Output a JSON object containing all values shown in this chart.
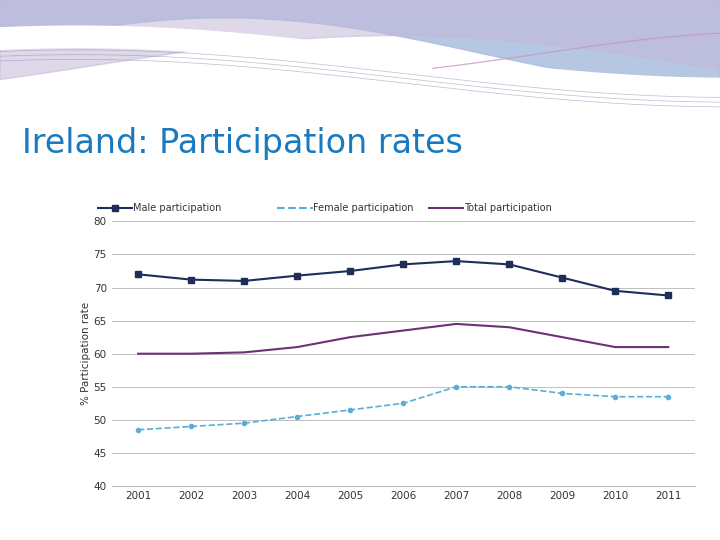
{
  "title": "Ireland: Participation rates",
  "title_color": "#1a7abf",
  "ylabel": "% Participation rate",
  "years": [
    2001,
    2002,
    2003,
    2004,
    2005,
    2006,
    2007,
    2008,
    2009,
    2010,
    2011
  ],
  "male": [
    72.0,
    71.2,
    71.0,
    71.8,
    72.5,
    73.5,
    74.0,
    73.5,
    71.5,
    69.5,
    68.8
  ],
  "female": [
    48.5,
    49.0,
    49.5,
    50.5,
    51.5,
    52.5,
    55.0,
    55.0,
    54.0,
    53.5,
    53.5
  ],
  "total": [
    60.0,
    60.0,
    60.2,
    61.0,
    62.5,
    63.5,
    64.5,
    64.0,
    62.5,
    61.0,
    61.0
  ],
  "male_color": "#1f2d5a",
  "female_color": "#5badd9",
  "total_color": "#6b3373",
  "ylim": [
    40,
    80
  ],
  "yticks": [
    40,
    45,
    50,
    55,
    60,
    65,
    70,
    75,
    80
  ],
  "legend_male": "Male participation",
  "legend_female": "Female participation",
  "legend_total": "Total participation",
  "wave_color1": "#b8c4e8",
  "wave_color2": "#c8b8d8",
  "wave_color3": "#d8c8e8"
}
